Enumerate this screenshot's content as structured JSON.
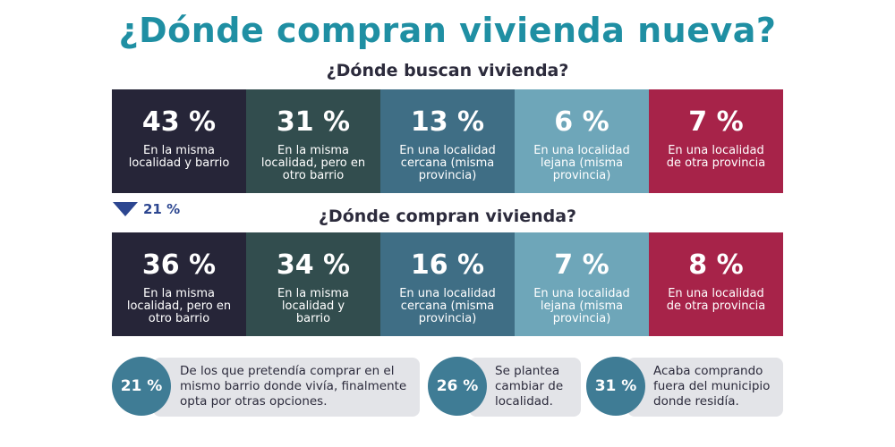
{
  "title": "¿Dónde compran vivienda nueva?",
  "search_section": {
    "heading": "¿Dónde buscan vivienda?",
    "cells": [
      {
        "pct": "43 %",
        "label": "En la misma localidad y barrio"
      },
      {
        "pct": "31 %",
        "label": "En la misma localidad, pero en otro barrio"
      },
      {
        "pct": "13 %",
        "label": "En una localidad cercana (misma provincia)"
      },
      {
        "pct": "6 %",
        "label": "En una localidad lejana (misma provincia)"
      },
      {
        "pct": "7 %",
        "label": "En una localidad de otra provincia"
      }
    ]
  },
  "indicator": {
    "value": "21 %"
  },
  "buy_section": {
    "heading": "¿Dónde compran vivienda?",
    "cells": [
      {
        "pct": "36 %",
        "label": "En la misma localidad, pero en otro barrio"
      },
      {
        "pct": "34 %",
        "label": "En la misma localidad y barrio"
      },
      {
        "pct": "16 %",
        "label": "En una localidad cercana (misma provincia)"
      },
      {
        "pct": "7 %",
        "label": "En una localidad lejana (misma provincia)"
      },
      {
        "pct": "8 %",
        "label": "En una localidad de otra provincia"
      }
    ]
  },
  "notes": [
    {
      "pct": "21 %",
      "text": "De los que pretendía comprar en el mismo barrio donde vivía, finalmente opta por otras opciones."
    },
    {
      "pct": "26 %",
      "text": "Se plantea cambiar de localidad."
    },
    {
      "pct": "31 %",
      "text": "Acaba comprando fuera del municipio donde residía."
    }
  ],
  "colors": {
    "title": "#1f8fa3",
    "cell_1": "#262538",
    "cell_2": "#324d4e",
    "cell_3": "#3f6e85",
    "cell_4": "#6ea6b9",
    "cell_5": "#a72349",
    "indicator": "#2c4690",
    "note_circle": "#3f7c95",
    "note_box": "#e3e4e8"
  }
}
